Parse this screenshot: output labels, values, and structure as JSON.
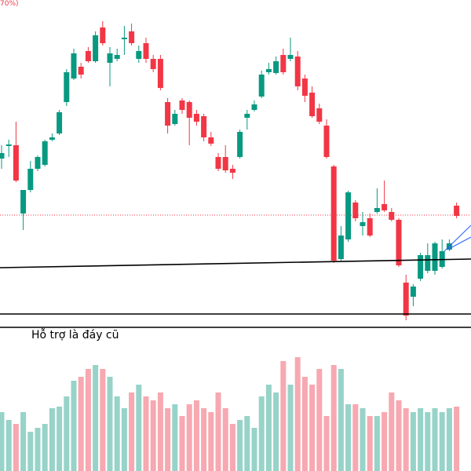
{
  "chart_data": {
    "type": "candlestick",
    "header_fragment": "70%)",
    "annotation": "Hỗ trợ là đáy cũ",
    "open": [
      398,
      414,
      415,
      328,
      358,
      385,
      390,
      422,
      430,
      470,
      500,
      515,
      535,
      522,
      565,
      520,
      525,
      550,
      560,
      525,
      545,
      525,
      525,
      470,
      442,
      472,
      470,
      455,
      452,
      425,
      400,
      400,
      385,
      400,
      450,
      460,
      477,
      508,
      507,
      530,
      525,
      528,
      500,
      482,
      462,
      440,
      388,
      270,
      295,
      342,
      312,
      322,
      330,
      340,
      330,
      320,
      240,
      222,
      245,
      255,
      255,
      260,
      282,
      338
    ],
    "high": [
      415,
      422,
      445,
      358,
      395,
      402,
      422,
      430,
      460,
      512,
      538,
      520,
      540,
      560,
      573,
      540,
      538,
      567,
      570,
      542,
      552,
      530,
      530,
      475,
      460,
      475,
      472,
      460,
      455,
      432,
      405,
      415,
      390,
      435,
      460,
      472,
      510,
      520,
      528,
      538,
      552,
      535,
      505,
      490,
      468,
      448,
      390,
      312,
      357,
      345,
      330,
      328,
      360,
      370,
      335,
      322,
      250,
      238,
      278,
      290,
      292,
      295,
      295,
      342
    ],
    "low": [
      385,
      400,
      368,
      307,
      355,
      382,
      388,
      420,
      428,
      465,
      498,
      500,
      520,
      520,
      542,
      490,
      522,
      530,
      542,
      520,
      520,
      508,
      485,
      430,
      440,
      455,
      415,
      440,
      420,
      414,
      382,
      380,
      372,
      398,
      435,
      458,
      475,
      505,
      505,
      505,
      522,
      485,
      470,
      450,
      442,
      398,
      265,
      268,
      292,
      318,
      300,
      298,
      328,
      330,
      318,
      260,
      192,
      210,
      242,
      252,
      250,
      258,
      280,
      322
    ],
    "close": [
      405,
      416,
      370,
      358,
      385,
      400,
      420,
      425,
      457,
      508,
      532,
      505,
      522,
      555,
      545,
      532,
      530,
      552,
      545,
      535,
      525,
      512,
      488,
      440,
      455,
      460,
      450,
      445,
      425,
      417,
      385,
      383,
      380,
      432,
      455,
      467,
      505,
      512,
      522,
      508,
      530,
      490,
      478,
      452,
      445,
      400,
      268,
      300,
      355,
      322,
      317,
      300,
      335,
      332,
      320,
      262,
      198,
      235,
      275,
      275,
      290,
      280,
      290,
      325
    ],
    "volume": [
      75,
      65,
      60,
      75,
      50,
      55,
      60,
      80,
      82,
      95,
      115,
      120,
      130,
      135,
      130,
      120,
      95,
      80,
      100,
      110,
      95,
      90,
      100,
      80,
      85,
      70,
      85,
      90,
      80,
      75,
      100,
      80,
      60,
      65,
      70,
      55,
      95,
      110,
      100,
      140,
      110,
      145,
      120,
      110,
      130,
      70,
      135,
      130,
      85,
      85,
      80,
      70,
      70,
      75,
      100,
      90,
      80,
      75,
      80,
      75,
      80,
      75,
      80,
      82
    ],
    "ylim": [
      180,
      600
    ],
    "volume_ylim": [
      0,
      150
    ],
    "up_color": "#089981",
    "down_color": "#f23645",
    "up_volume_color": "#97d3c8",
    "down_volume_color": "#f7a8b0"
  }
}
